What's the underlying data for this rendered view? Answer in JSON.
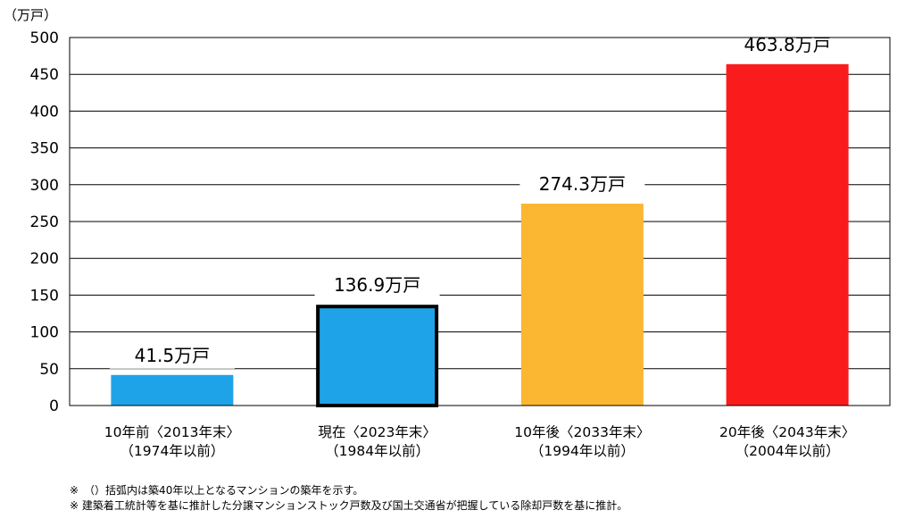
{
  "chart_data": {
    "type": "bar",
    "unit_label": "（万戸）",
    "ylim": [
      0,
      500
    ],
    "yticks": [
      0,
      50,
      100,
      150,
      200,
      250,
      300,
      350,
      400,
      450,
      500
    ],
    "grid": true,
    "categories": [
      [
        "10年前〈2013年末〉",
        "（1974年以前）"
      ],
      [
        "現在〈2023年末〉",
        "（1984年以前）"
      ],
      [
        "10年後〈2033年末〉",
        "（1994年以前）"
      ],
      [
        "20年後〈2043年末〉",
        "（2004年以前）"
      ]
    ],
    "values": [
      41.5,
      136.9,
      274.3,
      463.8
    ],
    "data_labels": [
      "41.5万戸",
      "136.9万戸",
      "274.3万戸",
      "463.8万戸"
    ],
    "colors": [
      "#1fa3e8",
      "#1fa3e8",
      "#fbb731",
      "#fa1c1c"
    ],
    "highlighted_index": 1
  },
  "notes": [
    "※　（）括弧内は築40年以上となるマンションの築年を示す。",
    "※ 建築着工統計等を基に推計した分譲マンションストック戸数及び国土交通省が把握している除却戸数を基に推計。"
  ]
}
